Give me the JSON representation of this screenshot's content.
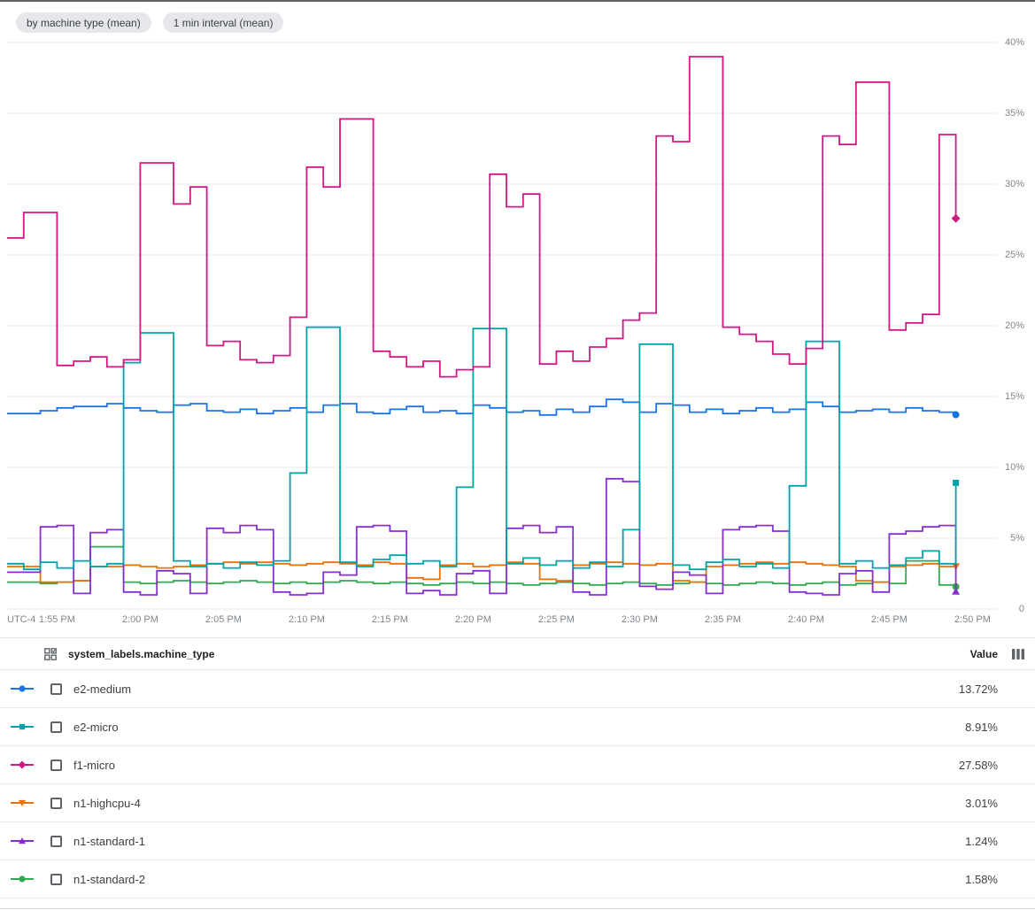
{
  "header": {
    "chips": [
      {
        "label": "by machine type (mean)"
      },
      {
        "label": "1 min interval (mean)"
      }
    ]
  },
  "chart_data": {
    "type": "line",
    "interpolation": "step-after",
    "unit": "%",
    "grid": true,
    "x_axis": {
      "timezone_label": "UTC-4",
      "start_time": "1:52 PM",
      "minutes_per_point": 1,
      "ticks": [
        {
          "label": "1:55 PM",
          "minute": 3
        },
        {
          "label": "2:00 PM",
          "minute": 8
        },
        {
          "label": "2:05 PM",
          "minute": 13
        },
        {
          "label": "2:10 PM",
          "minute": 18
        },
        {
          "label": "2:15 PM",
          "minute": 23
        },
        {
          "label": "2:20 PM",
          "minute": 28
        },
        {
          "label": "2:25 PM",
          "minute": 33
        },
        {
          "label": "2:30 PM",
          "minute": 38
        },
        {
          "label": "2:35 PM",
          "minute": 43
        },
        {
          "label": "2:40 PM",
          "minute": 48
        },
        {
          "label": "2:45 PM",
          "minute": 53
        },
        {
          "label": "2:50 PM",
          "minute": 58
        }
      ]
    },
    "y_axis": {
      "min": 0,
      "max": 40,
      "ticks": [
        {
          "label": "40%",
          "value": 40
        },
        {
          "label": "35%",
          "value": 35
        },
        {
          "label": "30%",
          "value": 30
        },
        {
          "label": "25%",
          "value": 25
        },
        {
          "label": "20%",
          "value": 20
        },
        {
          "label": "15%",
          "value": 15
        },
        {
          "label": "10%",
          "value": 10
        },
        {
          "label": "5%",
          "value": 5
        },
        {
          "label": "0",
          "value": 0
        }
      ]
    },
    "series": [
      {
        "name": "n1-standard-2",
        "color": "#34A853",
        "marker": "circle",
        "values": [
          1.9,
          1.9,
          1.8,
          1.9,
          2,
          4.4,
          4.4,
          1.9,
          1.8,
          1.9,
          2,
          1.9,
          1.8,
          1.9,
          2,
          1.9,
          1.8,
          1.9,
          1.8,
          1.9,
          2,
          1.9,
          1.8,
          1.9,
          1.8,
          1.7,
          1.8,
          1.9,
          1.8,
          1.9,
          1.8,
          1.7,
          1.8,
          1.9,
          1.8,
          1.7,
          1.8,
          1.9,
          1.8,
          1.7,
          1.8,
          1.9,
          1.8,
          1.7,
          1.8,
          1.9,
          1.8,
          1.7,
          1.8,
          1.9,
          1.7,
          1.8,
          1.9,
          1.8,
          3.4,
          3.4,
          1.7,
          1.58
        ]
      },
      {
        "name": "n1-highcpu-4",
        "color": "#E8710A",
        "marker": "triangle-down",
        "values": [
          3,
          3,
          1.9,
          1.9,
          2,
          3,
          3,
          3.1,
          3,
          2.9,
          3,
          3.1,
          3.2,
          3.3,
          3.2,
          3.3,
          3.2,
          3.1,
          3.2,
          3.3,
          3.2,
          3.1,
          3.3,
          3.2,
          2.2,
          2.1,
          3.1,
          3.2,
          3,
          3.1,
          3.3,
          3.2,
          2.1,
          2,
          3.1,
          3.2,
          3.3,
          3.2,
          3.1,
          3.2,
          2,
          1.9,
          3,
          3.1,
          3.2,
          3.3,
          3.2,
          3.3,
          3.2,
          3.1,
          3,
          2,
          1.9,
          3,
          3.1,
          3.2,
          3,
          3.01
        ]
      },
      {
        "name": "n1-standard-1",
        "color": "#8430CE",
        "marker": "triangle-up",
        "values": [
          2.6,
          2.6,
          5.8,
          5.9,
          1.1,
          5.4,
          5.6,
          1.2,
          1,
          2.7,
          2.5,
          1.1,
          5.7,
          5.4,
          5.9,
          5.6,
          1.2,
          1,
          1.1,
          2.6,
          2.4,
          5.8,
          5.9,
          5.5,
          1.1,
          1.3,
          1,
          2.5,
          2.7,
          1.1,
          5.7,
          5.9,
          5.4,
          5.8,
          1.2,
          1,
          9.2,
          9,
          1.6,
          1.4,
          2.6,
          2.4,
          1.1,
          5.6,
          5.8,
          5.9,
          5.5,
          1.2,
          1.1,
          1,
          2.5,
          2.7,
          1.2,
          5.3,
          5.5,
          5.8,
          5.9,
          1.24
        ]
      },
      {
        "name": "e2-medium",
        "color": "#1A73E8",
        "marker": "circle",
        "values": [
          13.8,
          13.8,
          14,
          14.2,
          14.3,
          14.3,
          14.5,
          14.2,
          14,
          13.9,
          14.4,
          14.5,
          14,
          13.9,
          14.1,
          13.8,
          14,
          14.2,
          13.9,
          14.4,
          14.5,
          13.9,
          13.8,
          14.1,
          14.3,
          13.9,
          14,
          13.8,
          14.4,
          14.2,
          13.9,
          14,
          13.7,
          14.1,
          13.9,
          14.3,
          14.8,
          14.6,
          13.9,
          14.5,
          14.4,
          13.9,
          14.1,
          13.8,
          14,
          14.2,
          13.9,
          14.1,
          14.6,
          14.3,
          13.9,
          14,
          14.1,
          13.9,
          14.2,
          14,
          13.9,
          13.72
        ]
      },
      {
        "name": "e2-micro",
        "color": "#00A3A8",
        "marker": "square",
        "values": [
          3.2,
          2.8,
          3.3,
          2.9,
          3.4,
          3,
          3.2,
          17.4,
          19.5,
          19.5,
          3.4,
          3,
          3.2,
          2.9,
          3.3,
          3.1,
          3.4,
          9.6,
          19.9,
          19.9,
          3.3,
          3,
          3.5,
          3.8,
          3.2,
          3.4,
          3,
          8.6,
          19.8,
          19.8,
          3.2,
          3.6,
          3.1,
          3.4,
          2.9,
          3.3,
          3,
          5.6,
          18.7,
          18.7,
          3.1,
          2.8,
          3.3,
          3.5,
          3,
          3.2,
          2.9,
          8.7,
          18.9,
          18.9,
          3.2,
          3.4,
          2.9,
          3.1,
          3.6,
          4.1,
          3.2,
          8.91
        ]
      },
      {
        "name": "f1-micro",
        "color": "#D01884",
        "marker": "diamond",
        "values": [
          26.2,
          28,
          28,
          17.2,
          17.5,
          17.8,
          17.1,
          17.6,
          31.5,
          31.5,
          28.6,
          29.8,
          18.6,
          18.9,
          17.6,
          17.4,
          17.9,
          20.6,
          31.2,
          29.8,
          34.6,
          34.6,
          18.2,
          17.8,
          17.1,
          17.5,
          16.4,
          16.9,
          17.1,
          30.7,
          28.4,
          29.3,
          17.3,
          18.2,
          17.5,
          18.5,
          19.1,
          20.4,
          20.9,
          33.4,
          33,
          39,
          39,
          19.9,
          19.4,
          18.9,
          18,
          17.3,
          18.4,
          33.4,
          32.8,
          37.2,
          37.2,
          19.7,
          20.2,
          20.8,
          33.5,
          27.58
        ]
      }
    ]
  },
  "table": {
    "column_machine_type": "system_labels.machine_type",
    "column_value": "Value",
    "icons": {
      "left_header_icon": "select-all-series-grid-icon",
      "right_header_icon": "columns-icon"
    },
    "rows": [
      {
        "label": "e2-medium",
        "value": "13.72%",
        "color": "#1A73E8",
        "marker": "circle"
      },
      {
        "label": "e2-micro",
        "value": "8.91%",
        "color": "#00A3A8",
        "marker": "square"
      },
      {
        "label": "f1-micro",
        "value": "27.58%",
        "color": "#D01884",
        "marker": "diamond"
      },
      {
        "label": "n1-highcpu-4",
        "value": "3.01%",
        "color": "#E8710A",
        "marker": "triangle-down"
      },
      {
        "label": "n1-standard-1",
        "value": "1.24%",
        "color": "#8430CE",
        "marker": "triangle-up"
      },
      {
        "label": "n1-standard-2",
        "value": "1.58%",
        "color": "#34A853",
        "marker": "circle"
      }
    ]
  }
}
